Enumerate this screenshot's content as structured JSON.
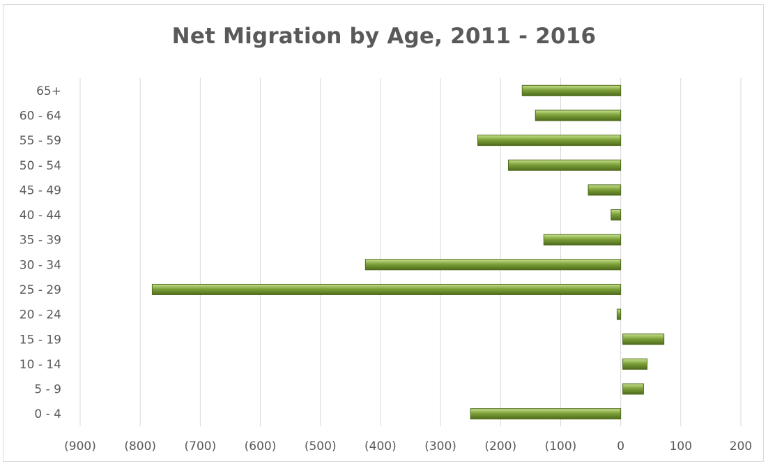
{
  "chart_data": {
    "type": "bar",
    "orientation": "horizontal",
    "title": "Net Migration by Age, 2011 - 2016",
    "xlabel": "",
    "ylabel": "",
    "categories": [
      "0 - 4",
      "5 - 9",
      "10 - 14",
      "15 - 19",
      "20 - 24",
      "25 - 29",
      "30 - 34",
      "35 - 39",
      "40 - 44",
      "45 - 49",
      "50 - 54",
      "55 - 59",
      "60 - 64",
      "65+"
    ],
    "values": [
      -250,
      38,
      44,
      72,
      -6,
      -780,
      -425,
      -128,
      -16,
      -54,
      -187,
      -238,
      -142,
      -164
    ],
    "xlim": [
      -900,
      200
    ],
    "x_ticks": [
      -900,
      -800,
      -700,
      -600,
      -500,
      -400,
      -300,
      -200,
      -100,
      0,
      100,
      200
    ],
    "x_tick_labels": [
      "(900)",
      "(800)",
      "(700)",
      "(600)",
      "(500)",
      "(400)",
      "(300)",
      "(200)",
      "(100)",
      "0",
      "100",
      "200"
    ],
    "grid": "vertical",
    "legend": "none",
    "bar_color": "#7ea23a",
    "bar_color_light": "#c9e28f",
    "bar_color_dark": "#4f6b1c"
  }
}
